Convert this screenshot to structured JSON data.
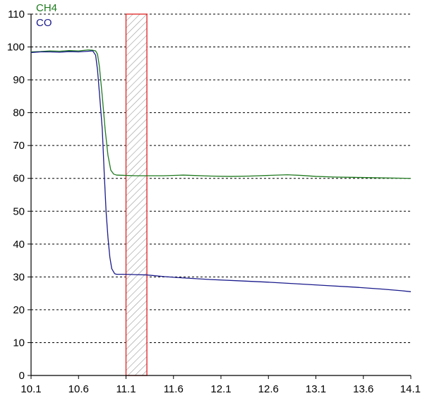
{
  "chart_data": {
    "type": "line",
    "xlim": [
      10.1,
      14.1
    ],
    "ylim": [
      0,
      110
    ],
    "x_ticks": [
      "10.1",
      "10.6",
      "11.1",
      "11.6",
      "12.1",
      "12.6",
      "13.1",
      "13.6",
      "14.1"
    ],
    "y_ticks": [
      "0",
      "10",
      "20",
      "30",
      "40",
      "50",
      "60",
      "70",
      "80",
      "90",
      "100",
      "110"
    ],
    "grid": "horizontal dashed",
    "legend_position": "top-left",
    "highlight_region": {
      "x_start": 11.1,
      "x_end": 11.32,
      "fill": "hatched",
      "border_color": "#e02020"
    },
    "series": [
      {
        "name": "CH4",
        "color": "#1f7a1f",
        "points": [
          [
            10.1,
            98.5
          ],
          [
            10.2,
            98.6
          ],
          [
            10.3,
            98.8
          ],
          [
            10.4,
            98.7
          ],
          [
            10.5,
            98.9
          ],
          [
            10.6,
            98.8
          ],
          [
            10.7,
            99.1
          ],
          [
            10.75,
            99.0
          ],
          [
            10.78,
            98.8
          ],
          [
            10.8,
            97.8
          ],
          [
            10.82,
            94.0
          ],
          [
            10.85,
            85.0
          ],
          [
            10.88,
            75.0
          ],
          [
            10.91,
            67.0
          ],
          [
            10.94,
            62.5
          ],
          [
            10.97,
            61.3
          ],
          [
            11.0,
            61.0
          ],
          [
            11.1,
            60.9
          ],
          [
            11.2,
            60.8
          ],
          [
            11.3,
            60.8
          ],
          [
            11.5,
            60.8
          ],
          [
            11.7,
            61.0
          ],
          [
            11.8,
            60.9
          ],
          [
            12.0,
            60.7
          ],
          [
            12.2,
            60.6
          ],
          [
            12.4,
            60.7
          ],
          [
            12.6,
            60.9
          ],
          [
            12.8,
            61.1
          ],
          [
            12.95,
            60.9
          ],
          [
            13.1,
            60.6
          ],
          [
            13.3,
            60.4
          ],
          [
            13.5,
            60.3
          ],
          [
            13.7,
            60.2
          ],
          [
            13.9,
            60.1
          ],
          [
            14.1,
            60.0
          ]
        ]
      },
      {
        "name": "CO",
        "color": "#1a1a8c",
        "points": [
          [
            10.1,
            98.3
          ],
          [
            10.2,
            98.5
          ],
          [
            10.3,
            98.5
          ],
          [
            10.4,
            98.4
          ],
          [
            10.5,
            98.6
          ],
          [
            10.6,
            98.5
          ],
          [
            10.7,
            98.7
          ],
          [
            10.75,
            98.8
          ],
          [
            10.78,
            97.5
          ],
          [
            10.8,
            93.0
          ],
          [
            10.82,
            86.0
          ],
          [
            10.85,
            75.0
          ],
          [
            10.87,
            62.0
          ],
          [
            10.89,
            50.0
          ],
          [
            10.91,
            42.0
          ],
          [
            10.93,
            36.0
          ],
          [
            10.95,
            32.5
          ],
          [
            10.98,
            31.0
          ],
          [
            11.0,
            30.8
          ],
          [
            11.1,
            30.8
          ],
          [
            11.2,
            30.7
          ],
          [
            11.32,
            30.6
          ],
          [
            11.5,
            30.1
          ],
          [
            11.7,
            29.7
          ],
          [
            12.0,
            29.2
          ],
          [
            12.3,
            28.8
          ],
          [
            12.6,
            28.4
          ],
          [
            12.9,
            27.9
          ],
          [
            13.2,
            27.4
          ],
          [
            13.5,
            26.9
          ],
          [
            13.8,
            26.3
          ],
          [
            14.0,
            25.8
          ],
          [
            14.1,
            25.5
          ]
        ]
      }
    ]
  }
}
